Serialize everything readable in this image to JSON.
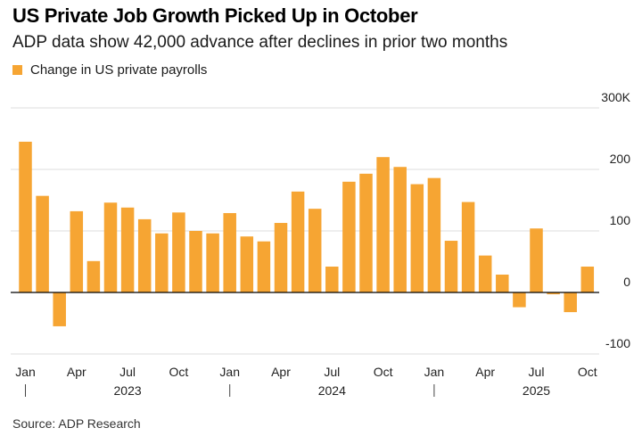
{
  "header": {
    "title": "US Private Job Growth Picked Up in October",
    "subtitle": "ADP data show 42,000 advance after declines in prior two months"
  },
  "footer": {
    "source": "Source: ADP Research"
  },
  "colors": {
    "bar": "#f6a533",
    "grid": "#dddddd",
    "zero_line": "#000000"
  },
  "chart_data": {
    "type": "bar",
    "title": "US Private Job Growth Picked Up in October",
    "subtitle": "ADP data show 42,000 advance after declines in prior two months",
    "xlabel": "",
    "ylabel": "",
    "ylim": [
      -100,
      300
    ],
    "y_unit": "thousands",
    "y_ticks": [
      300,
      200,
      100,
      0,
      -100
    ],
    "y_tick_labels": [
      "300K",
      "200",
      "100",
      "0",
      "-100"
    ],
    "grid": true,
    "legend": {
      "position": "top-left",
      "entries": [
        "Change in US private payrolls"
      ]
    },
    "categories": [
      "2023-01",
      "2023-02",
      "2023-03",
      "2023-04",
      "2023-05",
      "2023-06",
      "2023-07",
      "2023-08",
      "2023-09",
      "2023-10",
      "2023-11",
      "2023-12",
      "2024-01",
      "2024-02",
      "2024-03",
      "2024-04",
      "2024-05",
      "2024-06",
      "2024-07",
      "2024-08",
      "2024-09",
      "2024-10",
      "2024-11",
      "2024-12",
      "2025-01",
      "2025-02",
      "2025-03",
      "2025-04",
      "2025-05",
      "2025-06",
      "2025-07",
      "2025-08",
      "2025-09",
      "2025-10"
    ],
    "series": [
      {
        "name": "Change in US private payrolls",
        "values": [
          245,
          157,
          -55,
          132,
          51,
          146,
          138,
          119,
          96,
          130,
          100,
          96,
          129,
          91,
          83,
          113,
          164,
          136,
          42,
          180,
          193,
          220,
          204,
          176,
          186,
          84,
          147,
          60,
          29,
          -24,
          104,
          -3,
          -32,
          42
        ]
      }
    ],
    "x_tick_labels": [
      {
        "index": 0,
        "label": "Jan"
      },
      {
        "index": 3,
        "label": "Apr"
      },
      {
        "index": 6,
        "label": "Jul"
      },
      {
        "index": 9,
        "label": "Oct"
      },
      {
        "index": 12,
        "label": "Jan"
      },
      {
        "index": 15,
        "label": "Apr"
      },
      {
        "index": 18,
        "label": "Jul"
      },
      {
        "index": 21,
        "label": "Oct"
      },
      {
        "index": 24,
        "label": "Jan"
      },
      {
        "index": 27,
        "label": "Apr"
      },
      {
        "index": 30,
        "label": "Jul"
      },
      {
        "index": 33,
        "label": "Oct"
      }
    ],
    "year_labels": [
      {
        "start_index": 0,
        "label": "2023"
      },
      {
        "start_index": 12,
        "label": "2024"
      },
      {
        "start_index": 24,
        "label": "2025"
      }
    ]
  }
}
